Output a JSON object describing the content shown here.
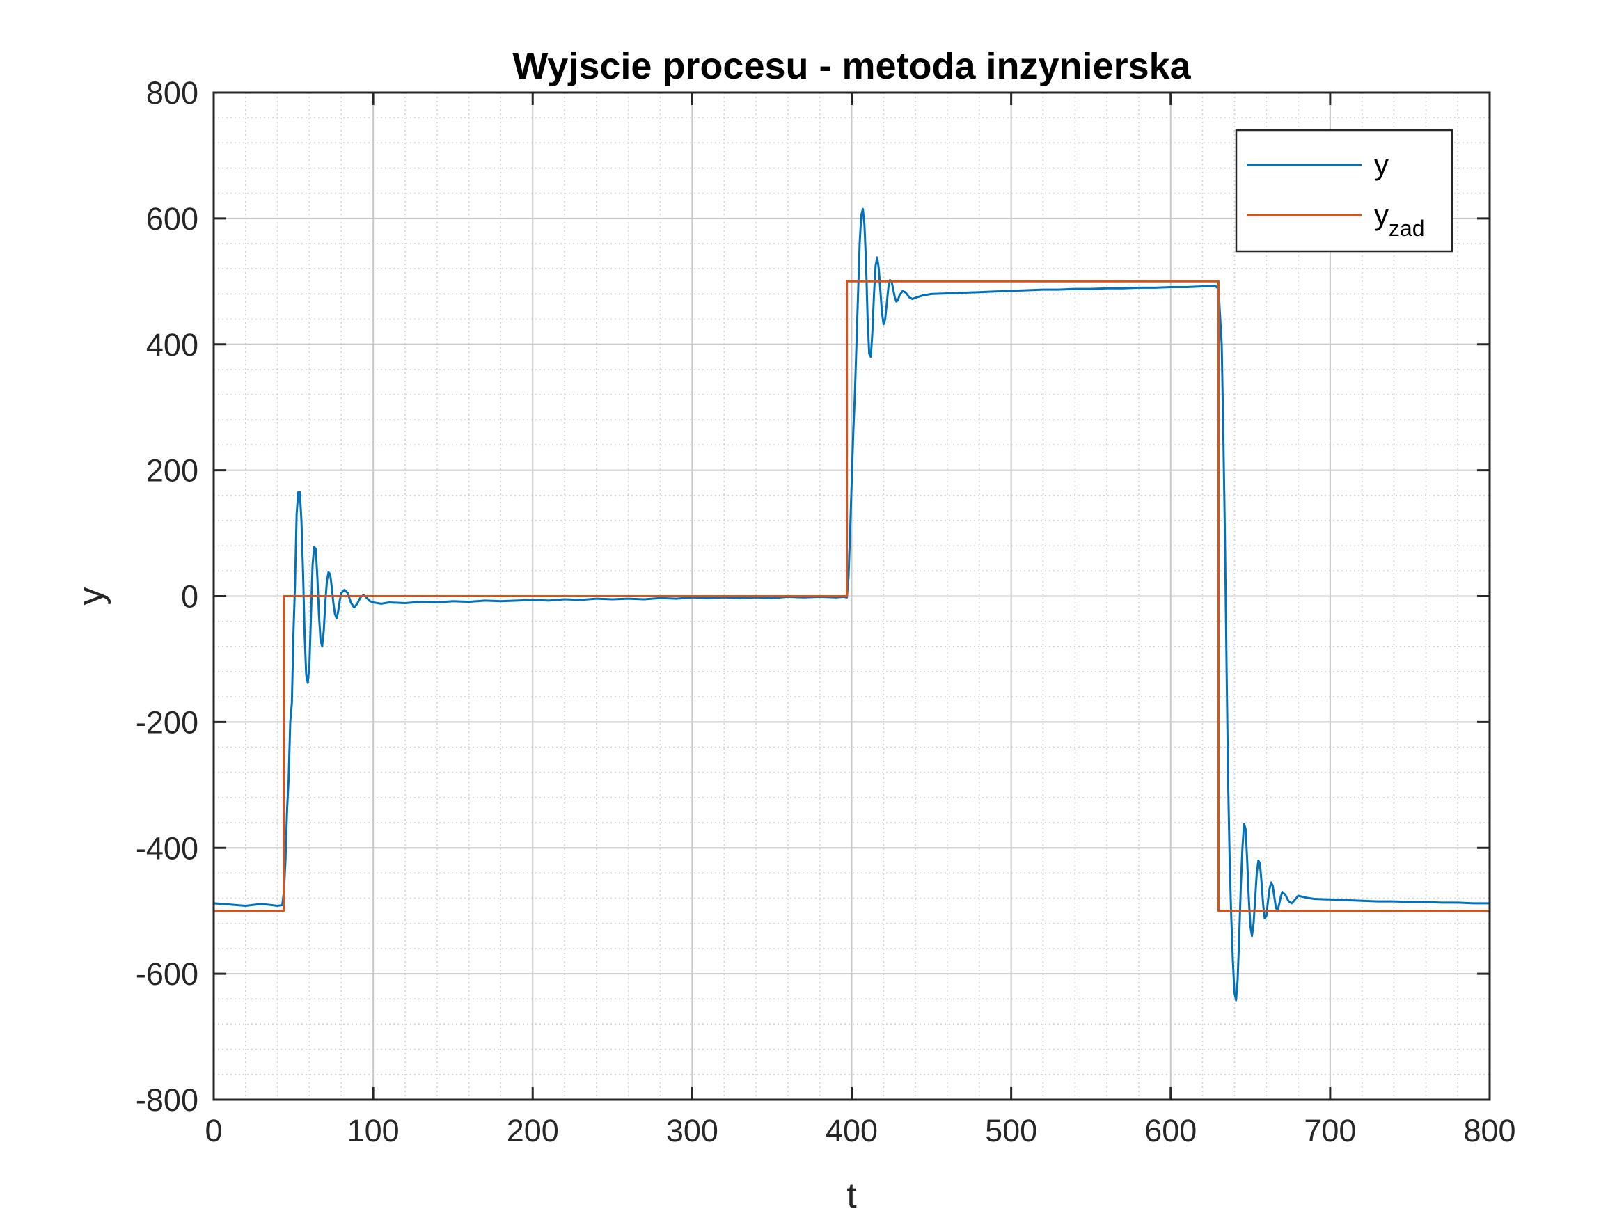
{
  "chart_data": {
    "type": "line",
    "title": "Wyjscie procesu - metoda inzynierska",
    "xlabel": "t",
    "ylabel": "y",
    "xlim": [
      0,
      800
    ],
    "ylim": [
      -800,
      800
    ],
    "xticks": [
      0,
      100,
      200,
      300,
      400,
      500,
      600,
      700,
      800
    ],
    "yticks": [
      -800,
      -600,
      -400,
      -200,
      0,
      200,
      400,
      600,
      800
    ],
    "grid": true,
    "minor_grid": true,
    "legend_position": "top-right",
    "legend": [
      {
        "label": "y",
        "sub": ""
      },
      {
        "label": "y",
        "sub": "zad"
      }
    ],
    "series": [
      {
        "name": "y",
        "color": "#0072BD",
        "points": [
          [
            0,
            -488
          ],
          [
            10,
            -490
          ],
          [
            20,
            -492
          ],
          [
            30,
            -489
          ],
          [
            40,
            -492
          ],
          [
            43,
            -491
          ],
          [
            44,
            -470
          ],
          [
            45,
            -420
          ],
          [
            46,
            -340
          ],
          [
            47,
            -290
          ],
          [
            48,
            -200
          ],
          [
            49,
            -170
          ],
          [
            50,
            -60
          ],
          [
            51,
            20
          ],
          [
            52,
            130
          ],
          [
            53,
            165
          ],
          [
            54,
            165
          ],
          [
            55,
            120
          ],
          [
            56,
            40
          ],
          [
            57,
            -60
          ],
          [
            58,
            -125
          ],
          [
            59,
            -138
          ],
          [
            60,
            -110
          ],
          [
            61,
            -30
          ],
          [
            62,
            50
          ],
          [
            63,
            78
          ],
          [
            64,
            75
          ],
          [
            65,
            30
          ],
          [
            66,
            -30
          ],
          [
            67,
            -70
          ],
          [
            68,
            -80
          ],
          [
            69,
            -55
          ],
          [
            70,
            -10
          ],
          [
            71,
            25
          ],
          [
            72,
            38
          ],
          [
            73,
            35
          ],
          [
            74,
            15
          ],
          [
            75,
            -10
          ],
          [
            76,
            -28
          ],
          [
            77,
            -35
          ],
          [
            78,
            -25
          ],
          [
            79,
            -8
          ],
          [
            80,
            5
          ],
          [
            82,
            10
          ],
          [
            84,
            5
          ],
          [
            86,
            -10
          ],
          [
            88,
            -18
          ],
          [
            90,
            -12
          ],
          [
            92,
            -2
          ],
          [
            94,
            2
          ],
          [
            96,
            -3
          ],
          [
            98,
            -8
          ],
          [
            100,
            -10
          ],
          [
            105,
            -12
          ],
          [
            110,
            -10
          ],
          [
            120,
            -11
          ],
          [
            130,
            -9
          ],
          [
            140,
            -10
          ],
          [
            150,
            -8
          ],
          [
            160,
            -9
          ],
          [
            170,
            -7
          ],
          [
            180,
            -8
          ],
          [
            190,
            -7
          ],
          [
            200,
            -6
          ],
          [
            210,
            -7
          ],
          [
            220,
            -5
          ],
          [
            230,
            -6
          ],
          [
            240,
            -4
          ],
          [
            250,
            -5
          ],
          [
            260,
            -4
          ],
          [
            270,
            -5
          ],
          [
            280,
            -3
          ],
          [
            290,
            -4
          ],
          [
            300,
            -2
          ],
          [
            310,
            -3
          ],
          [
            320,
            -2
          ],
          [
            330,
            -3
          ],
          [
            340,
            -2
          ],
          [
            350,
            -3
          ],
          [
            360,
            -1
          ],
          [
            370,
            -2
          ],
          [
            380,
            -1
          ],
          [
            390,
            -2
          ],
          [
            395,
            -1
          ],
          [
            397,
            -2
          ],
          [
            398,
            30
          ],
          [
            399,
            100
          ],
          [
            400,
            180
          ],
          [
            401,
            260
          ],
          [
            402,
            320
          ],
          [
            403,
            400
          ],
          [
            404,
            480
          ],
          [
            405,
            560
          ],
          [
            406,
            605
          ],
          [
            407,
            615
          ],
          [
            408,
            590
          ],
          [
            409,
            530
          ],
          [
            410,
            440
          ],
          [
            411,
            385
          ],
          [
            412,
            380
          ],
          [
            413,
            420
          ],
          [
            414,
            480
          ],
          [
            415,
            525
          ],
          [
            416,
            538
          ],
          [
            417,
            520
          ],
          [
            418,
            485
          ],
          [
            419,
            450
          ],
          [
            420,
            432
          ],
          [
            421,
            440
          ],
          [
            422,
            465
          ],
          [
            423,
            490
          ],
          [
            424,
            502
          ],
          [
            425,
            500
          ],
          [
            426,
            488
          ],
          [
            427,
            475
          ],
          [
            428,
            468
          ],
          [
            429,
            470
          ],
          [
            430,
            478
          ],
          [
            432,
            485
          ],
          [
            434,
            482
          ],
          [
            436,
            475
          ],
          [
            438,
            472
          ],
          [
            440,
            474
          ],
          [
            445,
            478
          ],
          [
            450,
            480
          ],
          [
            460,
            481
          ],
          [
            470,
            482
          ],
          [
            480,
            483
          ],
          [
            490,
            484
          ],
          [
            500,
            485
          ],
          [
            510,
            486
          ],
          [
            520,
            487
          ],
          [
            530,
            487
          ],
          [
            540,
            488
          ],
          [
            550,
            488
          ],
          [
            560,
            489
          ],
          [
            570,
            489
          ],
          [
            580,
            490
          ],
          [
            590,
            490
          ],
          [
            600,
            491
          ],
          [
            610,
            491
          ],
          [
            620,
            492
          ],
          [
            628,
            493
          ],
          [
            630,
            488
          ],
          [
            632,
            400
          ],
          [
            633,
            260
          ],
          [
            634,
            100
          ],
          [
            635,
            -100
          ],
          [
            636,
            -290
          ],
          [
            637,
            -420
          ],
          [
            638,
            -510
          ],
          [
            639,
            -580
          ],
          [
            640,
            -630
          ],
          [
            641,
            -642
          ],
          [
            642,
            -610
          ],
          [
            643,
            -540
          ],
          [
            644,
            -460
          ],
          [
            645,
            -400
          ],
          [
            646,
            -362
          ],
          [
            647,
            -370
          ],
          [
            648,
            -420
          ],
          [
            649,
            -480
          ],
          [
            650,
            -525
          ],
          [
            651,
            -540
          ],
          [
            652,
            -520
          ],
          [
            653,
            -480
          ],
          [
            654,
            -440
          ],
          [
            655,
            -420
          ],
          [
            656,
            -425
          ],
          [
            657,
            -455
          ],
          [
            658,
            -490
          ],
          [
            659,
            -512
          ],
          [
            660,
            -508
          ],
          [
            661,
            -485
          ],
          [
            662,
            -465
          ],
          [
            663,
            -455
          ],
          [
            664,
            -460
          ],
          [
            665,
            -478
          ],
          [
            666,
            -495
          ],
          [
            667,
            -500
          ],
          [
            668,
            -490
          ],
          [
            669,
            -478
          ],
          [
            670,
            -470
          ],
          [
            672,
            -475
          ],
          [
            674,
            -485
          ],
          [
            676,
            -488
          ],
          [
            678,
            -482
          ],
          [
            680,
            -476
          ],
          [
            685,
            -479
          ],
          [
            690,
            -481
          ],
          [
            700,
            -482
          ],
          [
            710,
            -483
          ],
          [
            720,
            -484
          ],
          [
            730,
            -485
          ],
          [
            740,
            -485
          ],
          [
            750,
            -486
          ],
          [
            760,
            -486
          ],
          [
            770,
            -487
          ],
          [
            780,
            -487
          ],
          [
            790,
            -488
          ],
          [
            800,
            -488
          ]
        ]
      },
      {
        "name": "y_zad",
        "color": "#D95319",
        "points": [
          [
            0,
            -500
          ],
          [
            44,
            -500
          ],
          [
            44,
            0
          ],
          [
            397,
            0
          ],
          [
            397,
            500
          ],
          [
            630,
            500
          ],
          [
            630,
            -500
          ],
          [
            800,
            -500
          ]
        ]
      }
    ]
  }
}
